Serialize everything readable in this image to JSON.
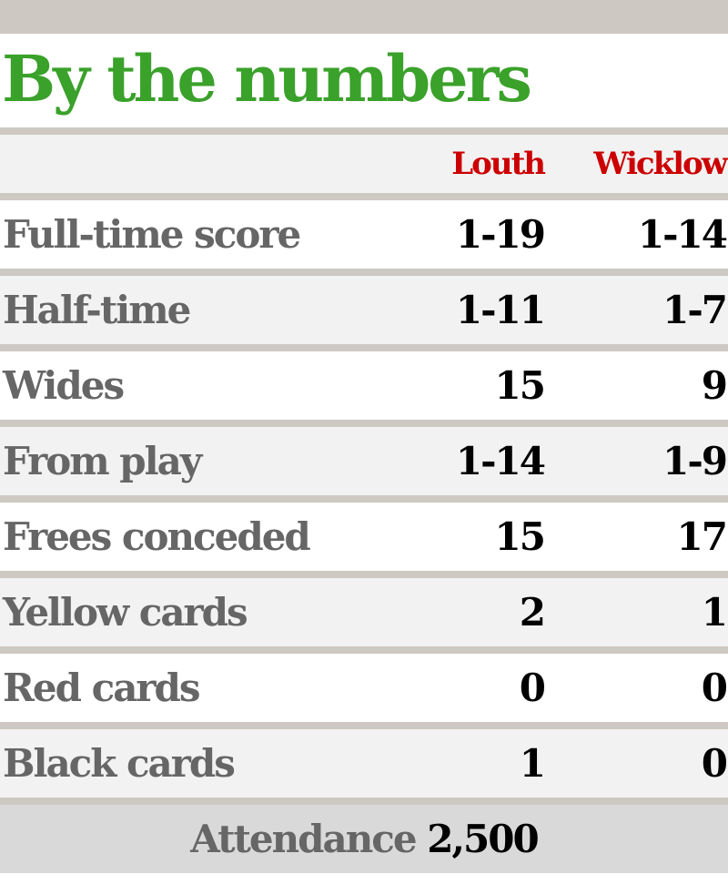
{
  "title": "By the numbers",
  "colors": {
    "title": "#3aa12a",
    "team_header": "#cc0000"
  },
  "teams": [
    "Louth",
    "Wicklow"
  ],
  "rows": [
    {
      "label": "Full-time score",
      "louth": "1-19",
      "wicklow": "1-14"
    },
    {
      "label": "Half-time",
      "louth": "1-11",
      "wicklow": "1-7"
    },
    {
      "label": "Wides",
      "louth": "15",
      "wicklow": "9"
    },
    {
      "label": "From play",
      "louth": "1-14",
      "wicklow": "1-9"
    },
    {
      "label": "Frees conceded",
      "louth": "15",
      "wicklow": "17"
    },
    {
      "label": "Yellow cards",
      "louth": "2",
      "wicklow": "1"
    },
    {
      "label": "Red cards",
      "louth": "0",
      "wicklow": "0"
    },
    {
      "label": "Black cards",
      "louth": "1",
      "wicklow": "0"
    }
  ],
  "attendance": {
    "label": "Attendance",
    "value": "2,500"
  }
}
